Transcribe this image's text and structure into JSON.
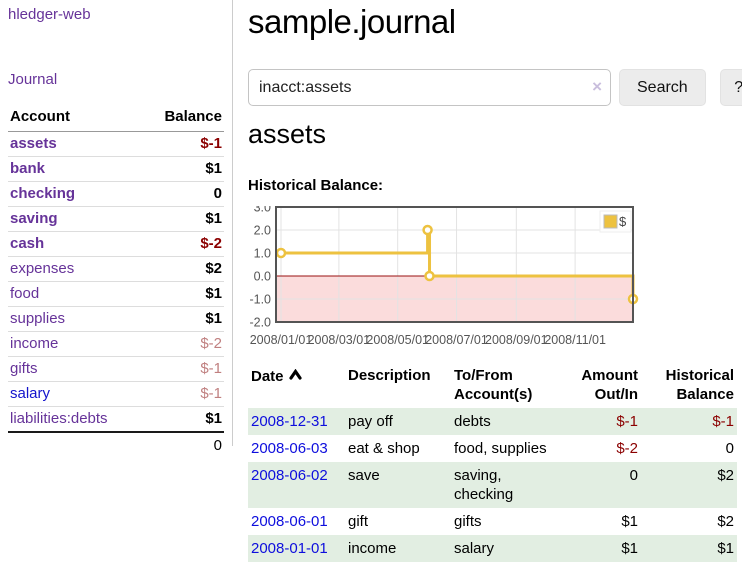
{
  "app": {
    "brand": "hledger-web",
    "nav_journal": "Journal"
  },
  "colors": {
    "link_purple": "#663399",
    "link_blue": "#1414cc",
    "date_link_blue": "#0e0edd",
    "negative_strong": "#8b0000",
    "negative_soft": "#c08080",
    "row_stripe_green": "#e2eee2",
    "chart_line_gold": "#edc240",
    "chart_negative_fill": "#fbdcdc",
    "chart_zero_line": "#991111"
  },
  "sidebar": {
    "header": {
      "account": "Account",
      "balance": "Balance"
    },
    "accounts": [
      {
        "name": "assets",
        "balance": "$-1",
        "indent": 0,
        "bold": true,
        "neg": "strong"
      },
      {
        "name": "bank",
        "balance": "$1",
        "indent": 1,
        "bold": true,
        "neg": ""
      },
      {
        "name": "checking",
        "balance": "0",
        "indent": 2,
        "bold": true,
        "neg": ""
      },
      {
        "name": "saving",
        "balance": "$1",
        "indent": 2,
        "bold": true,
        "neg": ""
      },
      {
        "name": "cash",
        "balance": "$-2",
        "indent": 1,
        "bold": true,
        "neg": "strong"
      },
      {
        "name": "expenses",
        "balance": "$2",
        "indent": 0,
        "bold": false,
        "neg": ""
      },
      {
        "name": "food",
        "balance": "$1",
        "indent": 1,
        "bold": false,
        "neg": ""
      },
      {
        "name": "supplies",
        "balance": "$1",
        "indent": 1,
        "bold": false,
        "neg": ""
      },
      {
        "name": "income",
        "balance": "$-2",
        "indent": 0,
        "bold": false,
        "neg": "soft"
      },
      {
        "name": "gifts",
        "balance": "$-1",
        "indent": 1,
        "bold": false,
        "neg": "soft"
      },
      {
        "name": "salary",
        "balance": "$-1",
        "indent": 1,
        "bold": false,
        "neg": "soft",
        "blue": true
      },
      {
        "name": "liabilities:debts",
        "balance": "$1",
        "indent": 0,
        "bold": false,
        "neg": ""
      }
    ],
    "total": "0"
  },
  "header": {
    "title": "sample.journal"
  },
  "search": {
    "value": "inacct:assets",
    "clear_icon": "×",
    "button": "Search",
    "help": "?"
  },
  "account_page": {
    "title": "assets",
    "chart_label": "Historical Balance:"
  },
  "chart_data": {
    "type": "line",
    "title": "Historical Balance",
    "series": [
      {
        "name": "$",
        "color": "#edc240",
        "step": true,
        "points": [
          [
            "2008-01-01",
            1
          ],
          [
            "2008-06-01",
            2
          ],
          [
            "2008-06-03",
            0
          ],
          [
            "2008-12-31",
            -1
          ]
        ]
      }
    ],
    "x_ticks": [
      "2008/01/01",
      "2008/03/01",
      "2008/05/01",
      "2008/07/01",
      "2008/09/01",
      "2008/11/01"
    ],
    "y_ticks": [
      3.0,
      2.0,
      1.0,
      0.0,
      -1.0,
      -2.0
    ],
    "x_range": [
      "2008-01-01",
      "2008-12-31"
    ],
    "y_range": [
      -2,
      3
    ],
    "grid": true,
    "legend": {
      "label": "$",
      "position": "top-right"
    },
    "negative_region_color": "#fbdcdc",
    "zero_line_color": "#991111"
  },
  "register": {
    "columns": [
      "Date",
      "Description",
      "To/From Account(s)",
      "Amount Out/In",
      "Historical Balance"
    ],
    "sort": {
      "column": "Date",
      "direction": "ascending"
    },
    "rows": [
      {
        "date": "2008-12-31",
        "description": "pay off",
        "accounts": "debts",
        "amount": "$-1",
        "amount_neg": true,
        "balance": "$-1",
        "balance_neg": true
      },
      {
        "date": "2008-06-03",
        "description": "eat & shop",
        "accounts": "food, supplies",
        "amount": "$-2",
        "amount_neg": true,
        "balance": "0",
        "balance_neg": false
      },
      {
        "date": "2008-06-02",
        "description": "save",
        "accounts": "saving, checking",
        "amount": "0",
        "amount_neg": false,
        "balance": "$2",
        "balance_neg": false
      },
      {
        "date": "2008-06-01",
        "description": "gift",
        "accounts": "gifts",
        "amount": "$1",
        "amount_neg": false,
        "balance": "$2",
        "balance_neg": false
      },
      {
        "date": "2008-01-01",
        "description": "income",
        "accounts": "salary",
        "amount": "$1",
        "amount_neg": false,
        "balance": "$1",
        "balance_neg": false
      }
    ]
  }
}
